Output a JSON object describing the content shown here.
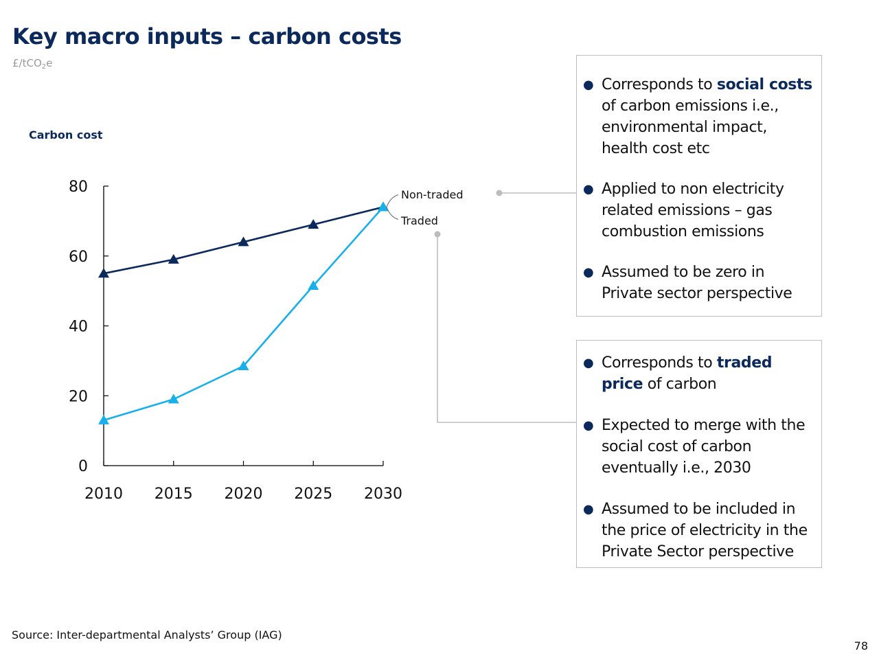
{
  "slide": {
    "title": "Key macro inputs – carbon costs",
    "unit": {
      "base": "£/tCO",
      "subscript": "2",
      "suffix": "e"
    },
    "chart_title": "Carbon cost",
    "source": "Source: Inter-departmental Analysts’ Group (IAG)",
    "page_number": "78"
  },
  "chart_data": {
    "type": "line",
    "title": "Carbon cost",
    "xlabel": "",
    "ylabel": "",
    "x": [
      2010,
      2015,
      2020,
      2025,
      2030
    ],
    "xticks": [
      "2010",
      "2015",
      "2020",
      "2025",
      "2030"
    ],
    "yticks": [
      "0",
      "20",
      "40",
      "60",
      "80"
    ],
    "xlim": [
      2010,
      2030
    ],
    "ylim": [
      0,
      80
    ],
    "grid": false,
    "legend": "inline labels at line ends (right)",
    "series": [
      {
        "name": "Non-traded",
        "values": [
          55,
          59,
          64,
          69,
          74
        ],
        "color": "#0b2a5b",
        "marker": "triangle"
      },
      {
        "name": "Traded",
        "values": [
          13,
          19,
          28.5,
          51.5,
          74
        ],
        "color": "#18b0ea",
        "marker": "triangle"
      }
    ]
  },
  "callouts": {
    "non_traded": {
      "bullets": [
        [
          {
            "text": "Corresponds to ",
            "bold": false
          },
          {
            "text": "social costs",
            "bold": true
          },
          {
            "text": " of carbon emissions i.e., environmental impact, health cost etc",
            "bold": false
          }
        ],
        [
          {
            "text": "Applied to non electricity related emissions – gas combustion emissions",
            "bold": false
          }
        ],
        [
          {
            "text": "Assumed to be zero in Private sector perspective",
            "bold": false
          }
        ]
      ]
    },
    "traded": {
      "bullets": [
        [
          {
            "text": "Corresponds to ",
            "bold": false
          },
          {
            "text": "traded price",
            "bold": true
          },
          {
            "text": " of carbon",
            "bold": false
          }
        ],
        [
          {
            "text": "Expected to merge with the social cost of carbon eventually i.e., 2030",
            "bold": false
          }
        ],
        [
          {
            "text": "Assumed to be included in the price of electricity in the Private Sector perspective",
            "bold": false
          }
        ]
      ]
    }
  },
  "colors": {
    "title": "#0b2a5b",
    "connector": "#bdbdbd"
  }
}
